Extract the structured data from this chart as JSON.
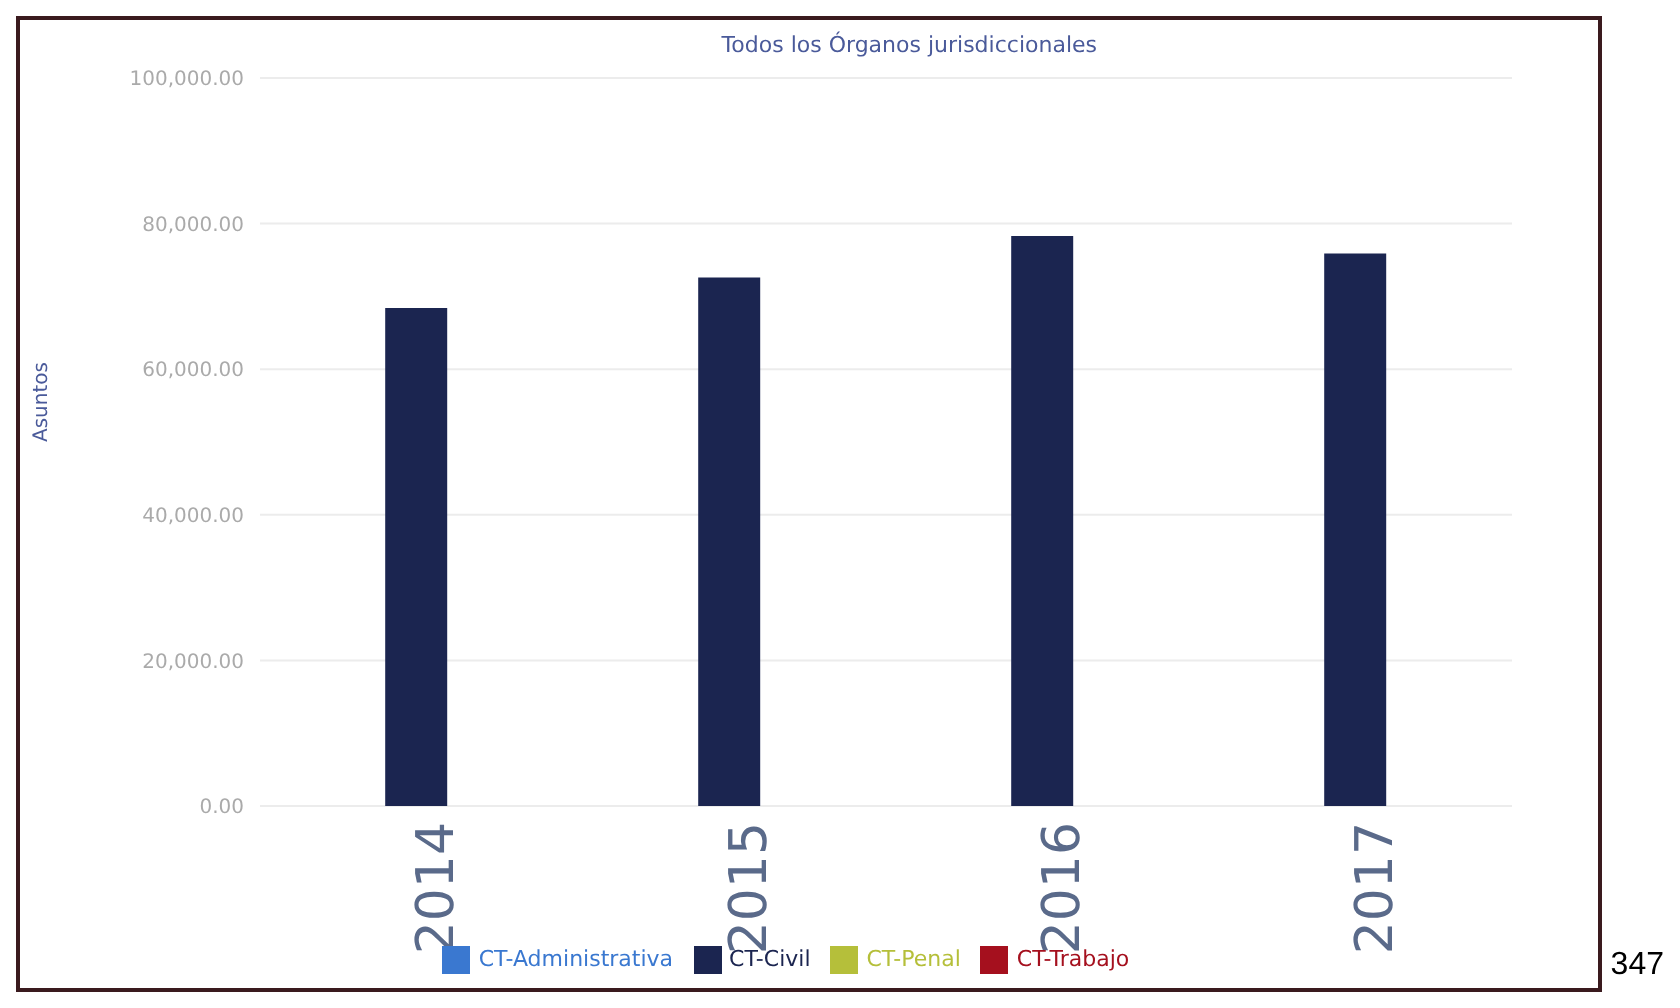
{
  "chart_data": {
    "type": "bar",
    "title": "Todos los Órganos jurisdiccionales",
    "ylabel": "Asuntos",
    "categories": [
      "2014",
      "2015",
      "2016",
      "2017"
    ],
    "series": [
      {
        "name": "CT-Administrativa",
        "color": "#3a78d0",
        "values": [
          null,
          null,
          null,
          null
        ]
      },
      {
        "name": "CT-Civil",
        "color": "#1b2550",
        "values": [
          68400,
          72600,
          78300,
          75900
        ]
      },
      {
        "name": "CT-Penal",
        "color": "#b5bf3a",
        "values": [
          null,
          null,
          null,
          null
        ]
      },
      {
        "name": "CT-Trabajo",
        "color": "#a5101e",
        "values": [
          null,
          null,
          null,
          null
        ]
      }
    ],
    "stacked": true,
    "ylim": [
      0,
      100000
    ],
    "yticks": [
      {
        "value": 0,
        "label": "0.00"
      },
      {
        "value": 20000,
        "label": "20,000.00"
      },
      {
        "value": 40000,
        "label": "40,000.00"
      },
      {
        "value": 60000,
        "label": "60,000.00"
      },
      {
        "value": 80000,
        "label": "80,000.00"
      },
      {
        "value": 100000,
        "label": "100,000.00"
      }
    ],
    "grid": "y",
    "legend": "bottom",
    "annotations": [
      "347"
    ]
  }
}
